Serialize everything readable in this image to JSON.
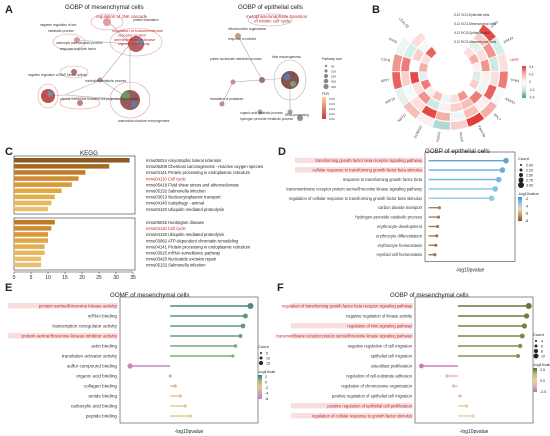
{
  "panels": {
    "A": {
      "letter": "A",
      "left_title": "GOBP of mesenchymal cells",
      "right_title": "GOBP of epithelial cells",
      "left_nodes": [
        "regulation of JNK cascade",
        "protein maturation",
        "negative regulation of wnt",
        "metabolic process",
        "regulation of transmembrane receptor protein serine/threonine kinase signaling pathway",
        "carboxylic acid catabolic process",
        "response to growth factor",
        "negative regulation of MAP kinase activity",
        "nucleotide metabolic process",
        "plasma membrane bounded cell projection organization",
        "anatomical structure morphogenesis"
      ],
      "right_nodes": [
        "metaphase/anaphase transition of mitotic cell cycle",
        "mitochondrion organization",
        "response to nutrient",
        "purine nucleoside metabolic process",
        "translation of proteases",
        "tube morphogenesis",
        "organic acid catabolic process",
        "hydrogen peroxide metabolic process",
        "tRNA processing"
      ],
      "legend": {
        "size_title": "Pathway size",
        "size_values": [
          "50",
          "100",
          "150",
          "200",
          "250"
        ],
        "color_title": "FDR",
        "color_values": [
          "0.05",
          "0.04",
          "0.03",
          "0.02",
          "0.01"
        ]
      }
    },
    "B": {
      "letter": "B",
      "ring_labels": [
        "5.12 SCG-Epithelial cells",
        "5.12 SCG-Mesenchymal cells",
        "5.12 RCG-Epithelial cells",
        "5.12 RCG-Mesenchymal cells"
      ],
      "outer_labels": [
        "FTH1",
        "ANXA2",
        "TPM2",
        "TPM1",
        "ANXA1",
        "RPL7",
        "Fam13a",
        "Anxa4",
        "PRSS23",
        "S100A10",
        "KRT17",
        "KRT19",
        "KRT7",
        "CSTB",
        "KRT8",
        "LGALS3"
      ],
      "scale_values": [
        "0.4",
        "0.2",
        "0",
        "-0.2",
        "-0.4"
      ]
    },
    "C": {
      "letter": "C",
      "title": "KEGG",
      "xlabel": "-log10(P)",
      "ticks": [
        "0",
        "5",
        "10",
        "15",
        "20",
        "25",
        "30",
        "35"
      ],
      "top_items": [
        "mmu05014  Amyotrophic lateral sclerosis",
        "mmu05208  Chemical carcinogenesis - reactive oxygen species",
        "mmu04141  Protein processing in endoplasmic reticulum",
        "mmu04110  Cell cycle",
        "mmu05418  Fluid shear stress and atherosclerosis",
        "mmu05132  Salmonella infection",
        "mmu03013  Nucleocytoplasmic transport",
        "mmu04140  Autophagy - animal",
        "mmu04120  Ubiquitin mediated proteolysis"
      ],
      "bottom_items": [
        "mmu05016  Huntington disease",
        "mmu04110  Cell cycle",
        "mmu04120  Ubiquitin mediated proteolysis",
        "mmu03082  ATP-dependent chromatin remodeling",
        "mmu04141  Protein processing in endoplasmic reticulum",
        "mmu03015  mRNA surveillance pathway",
        "mmu03420  Nucleotide excision repair",
        "mmu05132  Salmonella infection"
      ]
    },
    "D": {
      "letter": "D",
      "title": "GOBP of epithelial cells",
      "xlabel": "-log10pvalue",
      "items": [
        "transforming growth factor beta receptor signaling pathway",
        "cellular response to transforming growth factor beta stimulus",
        "response to transforming growth factor beta",
        "transmembrane receptor protein serine/threonine kinase signaling pathway",
        "regulation of cellular response to transforming growth factor beta stimulus",
        "carbon dioxide transport",
        "hydrogen peroxide catabolic process",
        "erythrocyte development",
        "erythrocyte differentiation",
        "erythrocyte homeostasis",
        "myeloid cell homeostasis"
      ],
      "count_title": "Count",
      "count_values": [
        "2.00",
        "2.25",
        "2.50",
        "2.75",
        "3.00"
      ],
      "color_title": "-log10value",
      "color_values": [
        "-2",
        "-4",
        "-6",
        "-8"
      ]
    },
    "E": {
      "letter": "E",
      "title": "GOMF of mesenchymal cells",
      "xlabel": "-log10pvalue",
      "items": [
        "protein serine/threonine kinase activity",
        "mRNA binding",
        "transcription coregulator activity",
        "protein serine/threonine kinase inhibitor activity",
        "actin binding",
        "translation activator activity",
        "sulfur compound binding",
        "organic acid binding",
        "collagen binding",
        "amide binding",
        "carboxylic acid binding",
        "peptide binding"
      ],
      "count_title": "Count",
      "count_values": [
        "5",
        "10",
        "15"
      ],
      "color_title": "-log10value",
      "color_values": [
        "2",
        "0",
        "-2",
        "-4",
        "-6"
      ]
    },
    "F": {
      "letter": "F",
      "title": "GOBP of mesenchymal cells",
      "xlabel": "-log10pvalue",
      "items": [
        "regulation of transforming growth factor beta receptor signaling pathway",
        "negative regulation of kinase activity",
        "regulation of Wnt signaling pathway",
        "negative regulation of transmembrane receptor protein serine/threonine kinase signaling pathway",
        "negative regulation of cell migration",
        "epithelial cell migration",
        "osteoblast proliferation",
        "regulation of cell-substrate adhesion",
        "regulation of chromosome organization",
        "positive regulation of epithelial cell migration",
        "positive regulation of epithelial cell proliferation",
        "regulation of cellular response to growth factor stimulus"
      ],
      "count_title": "Count",
      "count_values": [
        "4",
        "6",
        "8",
        "10"
      ],
      "color_title": "-log10value",
      "color_values": [
        "2.5",
        "0.0",
        "-2.5"
      ]
    }
  },
  "chart_data": [
    {
      "type": "bar",
      "title": "KEGG",
      "xlabel": "-log10(P)",
      "xlim": [
        0,
        35
      ],
      "categories": [
        "mmu05014",
        "mmu05208",
        "mmu04141",
        "mmu04110",
        "mmu05418",
        "mmu05132",
        "mmu03013",
        "mmu04140",
        "mmu04120",
        "mmu05016",
        "mmu04110",
        "mmu04120",
        "mmu03082",
        "mmu04141",
        "mmu03015",
        "mmu03420",
        "mmu05132"
      ],
      "values": [
        34,
        28,
        21,
        19,
        17,
        14,
        12,
        11,
        10,
        12,
        11,
        10,
        10,
        9,
        9,
        8,
        8
      ]
    },
    {
      "type": "scatter",
      "title": "GOBP of epithelial cells",
      "xlabel": "-log10pvalue",
      "values": [
        9.0,
        8.6,
        8.2,
        7.8,
        7.4,
        1.6,
        1.5,
        1.4,
        1.3,
        1.2,
        1.1
      ]
    },
    {
      "type": "scatter",
      "title": "GOMF of mesenchymal cells",
      "xlabel": "-log10pvalue",
      "values": [
        8.4,
        8.0,
        7.8,
        7.6,
        7.2,
        7.0,
        -1.2,
        2.0,
        2.4,
        2.8,
        3.2,
        3.6
      ]
    },
    {
      "type": "scatter",
      "title": "GOBP of mesenchymal cells",
      "xlabel": "-log10pvalue",
      "values": [
        8.6,
        8.4,
        8.2,
        8.0,
        7.8,
        7.6,
        -1.4,
        1.0,
        1.6,
        2.2,
        2.8,
        3.4
      ]
    }
  ]
}
